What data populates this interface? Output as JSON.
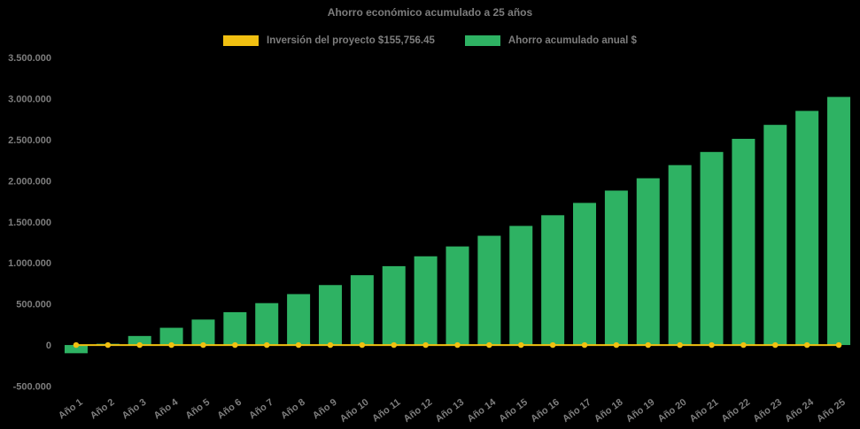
{
  "chart_data": {
    "type": "bar",
    "title": "Ahorro económico acumulado a 25 años",
    "categories": [
      "Año 1",
      "Año 2",
      "Año 3",
      "Año 4",
      "Año 5",
      "Año 6",
      "Año 7",
      "Año 8",
      "Año 9",
      "Año 10",
      "Año 11",
      "Año 12",
      "Año 13",
      "Año 14",
      "Año 15",
      "Año 16",
      "Año 17",
      "Año 18",
      "Año 19",
      "Año 20",
      "Año 21",
      "Año 22",
      "Año 23",
      "Año 24",
      "Año 25"
    ],
    "series": [
      {
        "name": "Inversión del proyecto $155,756.45",
        "type": "line",
        "color": "#f1c011",
        "values": [
          0,
          0,
          0,
          0,
          0,
          0,
          0,
          0,
          0,
          0,
          0,
          0,
          0,
          0,
          0,
          0,
          0,
          0,
          0,
          0,
          0,
          0,
          0,
          0,
          0
        ]
      },
      {
        "name": "Ahorro acumulado anual $",
        "type": "bar",
        "color": "#2eb263",
        "values": [
          -100000,
          15000,
          110000,
          210000,
          310000,
          400000,
          510000,
          620000,
          730000,
          850000,
          960000,
          1080000,
          1200000,
          1330000,
          1450000,
          1580000,
          1730000,
          1880000,
          2030000,
          2190000,
          2350000,
          2510000,
          2680000,
          2850000,
          3020000
        ]
      }
    ],
    "ylim": [
      -500000,
      3500000
    ],
    "y_ticks": {
      "values": [
        3500000,
        3000000,
        2500000,
        2000000,
        1500000,
        1000000,
        500000,
        0,
        -500000
      ],
      "labels": [
        "3.500.000",
        "3.000.000",
        "2.500.000",
        "2.000.000",
        "1.500.000",
        "1.000.000",
        "500.000",
        "0",
        "-500.000"
      ]
    },
    "grid": false,
    "legend_position": "top",
    "colors": {
      "background": "#000000",
      "text": "#7d7d7d"
    }
  }
}
